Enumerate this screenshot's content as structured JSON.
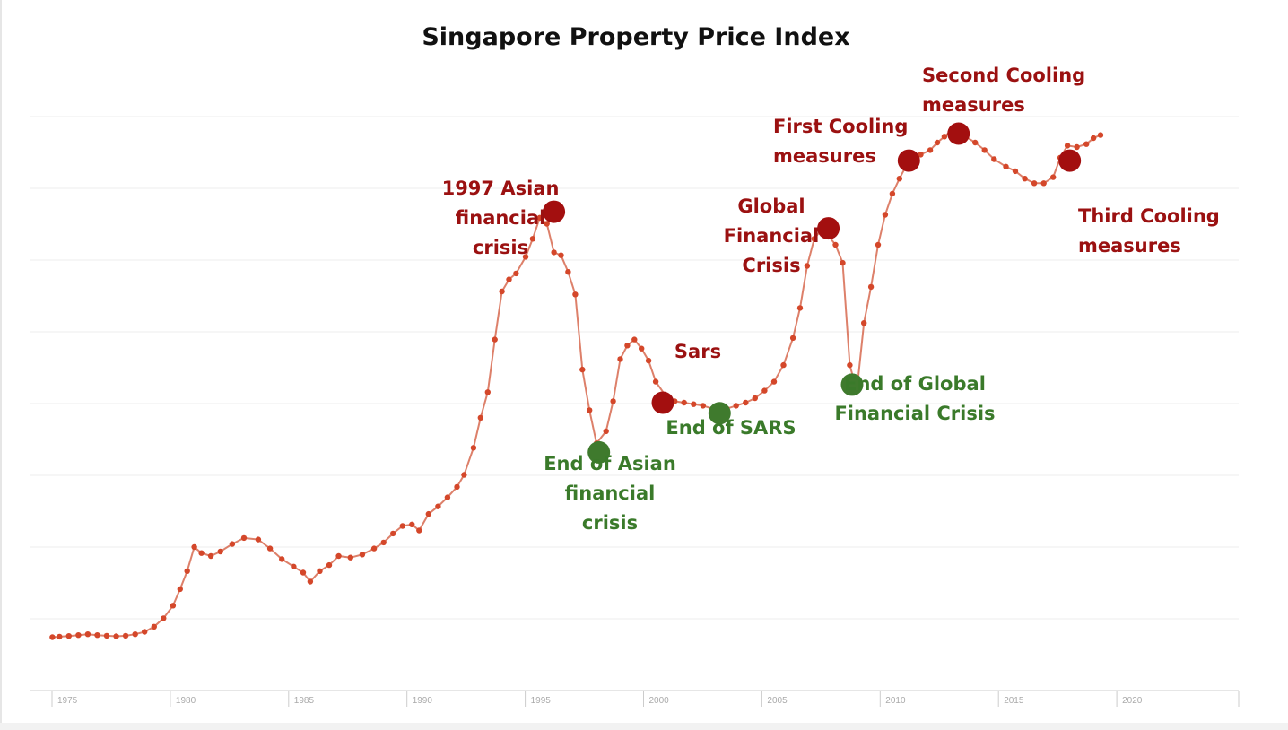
{
  "chart_data": {
    "type": "line",
    "title": "Singapore Property Price Index",
    "xlabel": "",
    "ylabel": "",
    "x_ticks": [
      "1975",
      "1980",
      "1985",
      "1990",
      "1995",
      "2000",
      "2005",
      "2010",
      "2015",
      "2020"
    ],
    "xlim": [
      1973.9,
      2024.7
    ],
    "y_axis_labels_shown": false,
    "ylim": [
      0,
      200
    ],
    "grid": true,
    "legend": "none",
    "line_color": "#cf4a2b",
    "point_color": "#d4472a",
    "series": [
      {
        "points": [
          [
            1974.9,
            9.5
          ],
          [
            1975.2,
            9.7
          ],
          [
            1975.6,
            9.9
          ],
          [
            1976.0,
            10.2
          ],
          [
            1976.4,
            10.5
          ],
          [
            1976.8,
            10.2
          ],
          [
            1977.2,
            10.0
          ],
          [
            1977.6,
            9.8
          ],
          [
            1978.0,
            10.0
          ],
          [
            1978.4,
            10.5
          ],
          [
            1978.8,
            11.3
          ],
          [
            1979.2,
            13.0
          ],
          [
            1979.6,
            15.8
          ],
          [
            1980.0,
            20.0
          ],
          [
            1980.3,
            25.5
          ],
          [
            1980.6,
            31.5
          ],
          [
            1980.9,
            39.5
          ],
          [
            1981.2,
            37.5
          ],
          [
            1981.6,
            36.5
          ],
          [
            1982.0,
            38.0
          ],
          [
            1982.5,
            40.5
          ],
          [
            1983.0,
            42.5
          ],
          [
            1983.6,
            42.0
          ],
          [
            1984.1,
            39.0
          ],
          [
            1984.6,
            35.5
          ],
          [
            1985.1,
            33.0
          ],
          [
            1985.5,
            31.0
          ],
          [
            1985.8,
            28.0
          ],
          [
            1986.2,
            31.5
          ],
          [
            1986.6,
            33.5
          ],
          [
            1987.0,
            36.5
          ],
          [
            1987.5,
            36.0
          ],
          [
            1988.0,
            37.0
          ],
          [
            1988.5,
            39.0
          ],
          [
            1988.9,
            41.0
          ],
          [
            1989.3,
            44.0
          ],
          [
            1989.7,
            46.5
          ],
          [
            1990.1,
            47.0
          ],
          [
            1990.4,
            45.0
          ],
          [
            1990.8,
            50.5
          ],
          [
            1991.2,
            53.0
          ],
          [
            1991.6,
            56.0
          ],
          [
            1992.0,
            59.5
          ],
          [
            1992.3,
            63.5
          ],
          [
            1992.7,
            72.5
          ],
          [
            1993.0,
            82.5
          ],
          [
            1993.3,
            91.0
          ],
          [
            1993.6,
            108.5
          ],
          [
            1993.9,
            124.5
          ],
          [
            1994.2,
            128.5
          ],
          [
            1994.5,
            130.5
          ],
          [
            1994.9,
            136.0
          ],
          [
            1995.2,
            142.0
          ],
          [
            1995.5,
            149.0
          ],
          [
            1995.8,
            147.0
          ],
          [
            1996.1,
            137.5
          ],
          [
            1996.4,
            136.5
          ],
          [
            1996.7,
            131.0
          ],
          [
            1997.0,
            123.5
          ],
          [
            1997.3,
            98.5
          ],
          [
            1997.6,
            85.0
          ],
          [
            1997.9,
            74.0
          ],
          [
            1998.3,
            78.0
          ],
          [
            1998.6,
            88.0
          ],
          [
            1998.9,
            102.0
          ],
          [
            1999.2,
            106.5
          ],
          [
            1999.5,
            108.5
          ],
          [
            1999.8,
            105.5
          ],
          [
            2000.1,
            101.5
          ],
          [
            2000.4,
            94.5
          ],
          [
            2000.8,
            90.0
          ],
          [
            2001.2,
            88.0
          ],
          [
            2001.6,
            87.5
          ],
          [
            2002.0,
            87.0
          ],
          [
            2002.4,
            86.5
          ],
          [
            2002.8,
            85.5
          ],
          [
            2003.1,
            85.0
          ],
          [
            2003.4,
            85.5
          ],
          [
            2003.8,
            86.5
          ],
          [
            2004.2,
            87.5
          ],
          [
            2004.6,
            89.0
          ],
          [
            2005.0,
            91.5
          ],
          [
            2005.4,
            94.5
          ],
          [
            2005.8,
            100.0
          ],
          [
            2006.2,
            109.0
          ],
          [
            2006.5,
            119.0
          ],
          [
            2006.8,
            133.0
          ],
          [
            2007.1,
            142.0
          ],
          [
            2007.4,
            145.0
          ],
          [
            2007.7,
            143.0
          ],
          [
            2008.0,
            140.0
          ],
          [
            2008.3,
            134.0
          ],
          [
            2008.6,
            100.0
          ],
          [
            2008.9,
            91.5
          ],
          [
            2009.2,
            114.0
          ],
          [
            2009.5,
            126.0
          ],
          [
            2009.8,
            140.0
          ],
          [
            2010.1,
            150.0
          ],
          [
            2010.4,
            157.0
          ],
          [
            2010.7,
            162.0
          ],
          [
            2011.0,
            166.5
          ],
          [
            2011.3,
            168.5
          ],
          [
            2011.6,
            170.0
          ],
          [
            2012.0,
            171.5
          ],
          [
            2012.3,
            174.0
          ],
          [
            2012.6,
            176.0
          ],
          [
            2012.9,
            178.0
          ],
          [
            2013.2,
            179.0
          ],
          [
            2013.5,
            176.0
          ],
          [
            2013.9,
            174.0
          ],
          [
            2014.3,
            171.5
          ],
          [
            2014.7,
            168.5
          ],
          [
            2015.2,
            166.0
          ],
          [
            2015.6,
            164.5
          ],
          [
            2016.0,
            162.0
          ],
          [
            2016.4,
            160.5
          ],
          [
            2016.8,
            160.5
          ],
          [
            2017.2,
            162.5
          ],
          [
            2017.5,
            169.0
          ],
          [
            2017.8,
            173.0
          ],
          [
            2018.2,
            172.5
          ],
          [
            2018.6,
            173.5
          ],
          [
            2018.9,
            175.5
          ],
          [
            2019.2,
            176.5
          ]
        ]
      }
    ],
    "annotations": [
      {
        "text": "1997 Asian\nfinancial\ncrisis",
        "x": 1996.1,
        "y": 151.0,
        "color": "#9b1111",
        "marker_color": "#a30f0f"
      },
      {
        "text": "End of Asian\nfinancial\ncrisis",
        "x": 1998.0,
        "y": 71.0,
        "color": "#3a7a2a",
        "marker_color": "#3f7a2d"
      },
      {
        "text": "Sars",
        "x": 2000.7,
        "y": 87.5,
        "color": "#9b1111",
        "marker_color": "#a30f0f"
      },
      {
        "text": "End of SARS",
        "x": 2003.1,
        "y": 84.0,
        "color": "#3a7a2a",
        "marker_color": "#3f7a2d"
      },
      {
        "text": "Global\nFinancial\nCrisis",
        "x": 2007.7,
        "y": 145.5,
        "color": "#9b1111",
        "marker_color": "#a30f0f"
      },
      {
        "text": "End of Global\nFinancial Crisis",
        "x": 2008.7,
        "y": 93.5,
        "color": "#3a7a2a",
        "marker_color": "#3f7a2d"
      },
      {
        "text": "First Cooling\nmeasures",
        "x": 2011.1,
        "y": 168.0,
        "color": "#9b1111",
        "marker_color": "#a30f0f"
      },
      {
        "text": "Second Cooling\nmeasures",
        "x": 2013.2,
        "y": 177.0,
        "color": "#9b1111",
        "marker_color": "#a30f0f"
      },
      {
        "text": "Third Cooling\nmeasures",
        "x": 2017.9,
        "y": 168.0,
        "color": "#9b1111",
        "marker_color": "#a30f0f"
      }
    ]
  }
}
